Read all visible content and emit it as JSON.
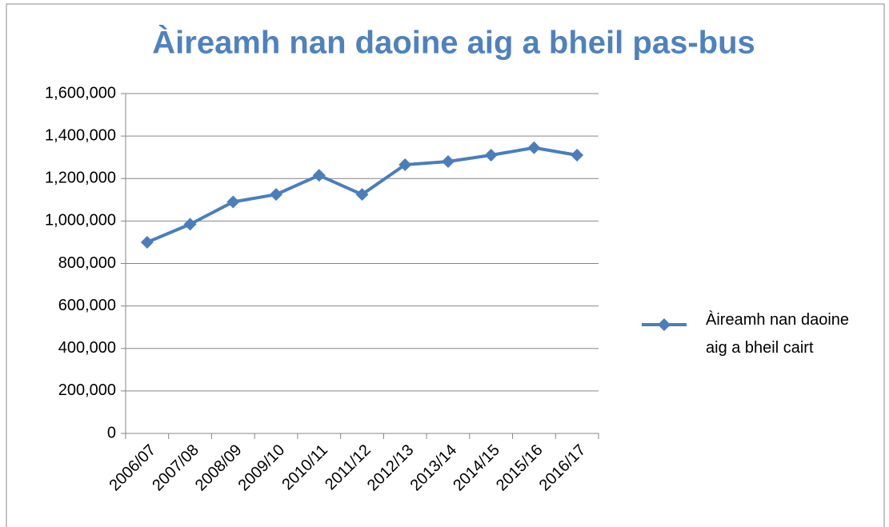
{
  "chart_data": {
    "type": "line",
    "title": "Àireamh nan daoine aig a bheil pas-bus",
    "categories": [
      "2006/07",
      "2007/08",
      "2008/09",
      "2009/10",
      "2010/11",
      "2011/12",
      "2012/13",
      "2013/14",
      "2014/15",
      "2015/16",
      "2016/17"
    ],
    "series": [
      {
        "name": "Àireamh nan daoine aig a bheil cairt",
        "color": "#4a7ebb",
        "values": [
          900000,
          985000,
          1090000,
          1125000,
          1215000,
          1125000,
          1265000,
          1280000,
          1310000,
          1345000,
          1310000
        ]
      }
    ],
    "ylim": [
      0,
      1600000
    ],
    "yticks": [
      0,
      {
        "value": 200000,
        "label": "200,000"
      },
      {
        "value": 400000,
        "label": "400,000"
      },
      {
        "value": 600000,
        "label": "600,000"
      },
      {
        "value": 800000,
        "label": "800,000"
      },
      {
        "value": 1000000,
        "label": "1,000,000"
      },
      {
        "value": 1200000,
        "label": "1,200,000"
      },
      {
        "value": 1400000,
        "label": "1,400,000"
      },
      {
        "value": 1600000,
        "label": "1,600,000"
      }
    ],
    "grid": true,
    "legend": "right"
  }
}
